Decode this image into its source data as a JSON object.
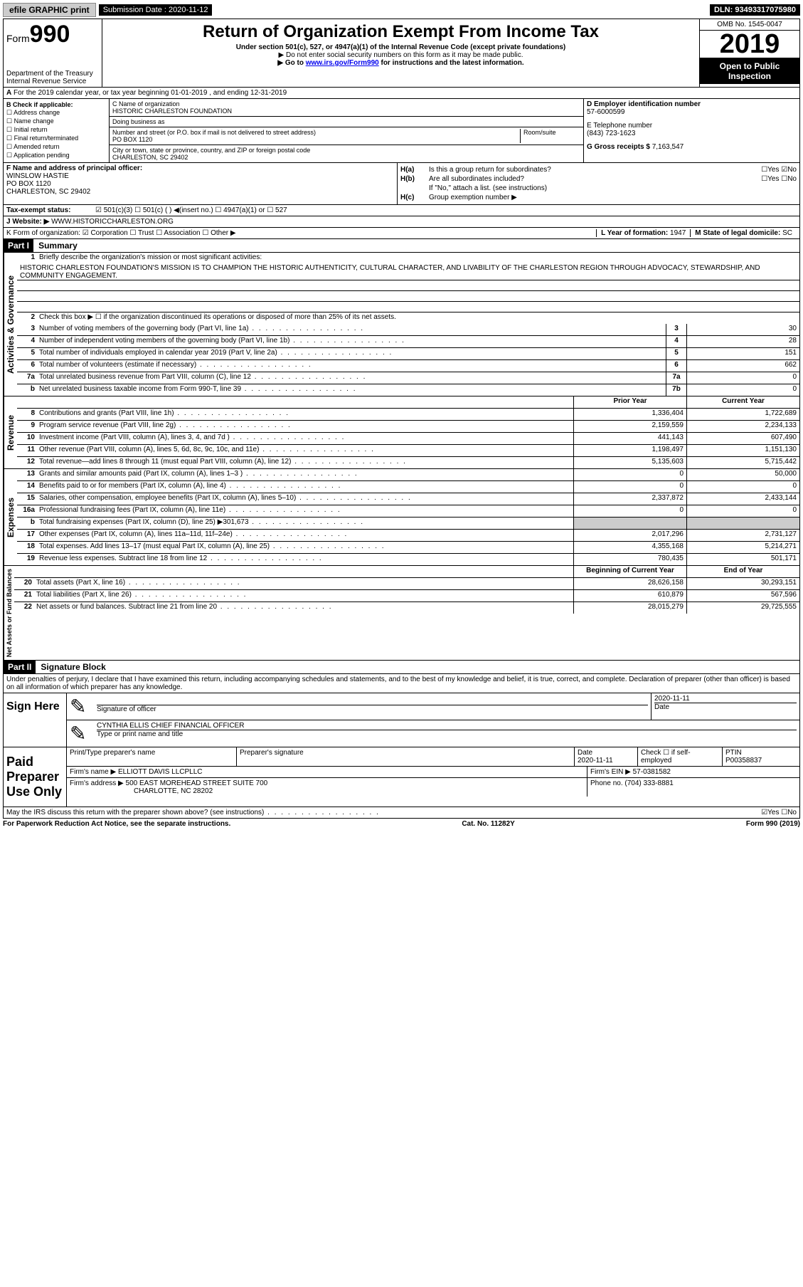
{
  "topbar": {
    "efile": "efile GRAPHIC print",
    "subm_label": "Submission Date : ",
    "subm_date": "2020-11-12",
    "dln": "DLN: 93493317075980"
  },
  "header": {
    "form_word": "Form",
    "form_no": "990",
    "dept": "Department of the Treasury\nInternal Revenue Service",
    "title": "Return of Organization Exempt From Income Tax",
    "sub1": "Under section 501(c), 527, or 4947(a)(1) of the Internal Revenue Code (except private foundations)",
    "sub2": "▶ Do not enter social security numbers on this form as it may be made public.",
    "sub3_pre": "▶ Go to ",
    "sub3_link": "www.irs.gov/Form990",
    "sub3_post": " for instructions and the latest information.",
    "omb": "OMB No. 1545-0047",
    "year": "2019",
    "open": "Open to Public Inspection"
  },
  "lineA": "For the 2019 calendar year, or tax year beginning 01-01-2019    , and ending 12-31-2019",
  "boxB": {
    "label": "B Check if applicable:",
    "opts": [
      "Address change",
      "Name change",
      "Initial return",
      "Final return/terminated",
      "Amended return",
      "Application pending"
    ]
  },
  "boxC": {
    "name_lbl": "C Name of organization",
    "name": "HISTORIC CHARLESTON FOUNDATION",
    "dba_lbl": "Doing business as",
    "dba": "",
    "addr_lbl": "Number and street (or P.O. box if mail is not delivered to street address)",
    "room_lbl": "Room/suite",
    "addr": "PO BOX 1120",
    "city_lbl": "City or town, state or province, country, and ZIP or foreign postal code",
    "city": "CHARLESTON, SC   29402"
  },
  "boxD": {
    "lbl": "D Employer identification number",
    "val": "57-6000599"
  },
  "boxE": {
    "lbl": "E Telephone number",
    "val": "(843) 723-1623"
  },
  "boxG": {
    "lbl": "G Gross receipts $ ",
    "val": "7,163,547"
  },
  "boxF": {
    "lbl": "F Name and address of principal officer:",
    "name": "WINSLOW HASTIE",
    "addr1": "PO BOX 1120",
    "addr2": "CHARLESTON, SC   29402"
  },
  "boxH": {
    "a": "Is this a group return for subordinates?",
    "a_ans": "☐Yes  ☑No",
    "b": "Are all subordinates included?",
    "b_ans": "☐Yes  ☐No",
    "b_note": "If \"No,\" attach a list. (see instructions)",
    "c": "Group exemption number ▶"
  },
  "taxexempt": {
    "lbl": "Tax-exempt status:",
    "opts": "☑ 501(c)(3)    ☐ 501(c) (   ) ◀(insert no.)    ☐ 4947(a)(1) or   ☐ 527"
  },
  "website": {
    "lbl": "J   Website: ▶",
    "val": "WWW.HISTORICCHARLESTON.ORG"
  },
  "boxK": "K Form of organization:  ☑ Corporation  ☐ Trust  ☐ Association  ☐ Other ▶",
  "boxL": {
    "lbl": "L Year of formation: ",
    "val": "1947"
  },
  "boxM": {
    "lbl": "M State of legal domicile: ",
    "val": "SC"
  },
  "part1": {
    "bar": "Part I",
    "title": "Summary",
    "q1": "Briefly describe the organization's mission or most significant activities:",
    "mission": "HISTORIC CHARLESTON FOUNDATION'S MISSION IS TO CHAMPION THE HISTORIC AUTHENTICITY, CULTURAL CHARACTER, AND LIVABILITY OF THE CHARLESTON REGION THROUGH ADVOCACY, STEWARDSHIP, AND COMMUNITY ENGAGEMENT.",
    "q2": "Check this box ▶ ☐  if the organization discontinued its operations or disposed of more than 25% of its net assets.",
    "lines_act": [
      {
        "n": "3",
        "d": "Number of voting members of the governing body (Part VI, line 1a)",
        "box": "3",
        "v": "30"
      },
      {
        "n": "4",
        "d": "Number of independent voting members of the governing body (Part VI, line 1b)",
        "box": "4",
        "v": "28"
      },
      {
        "n": "5",
        "d": "Total number of individuals employed in calendar year 2019 (Part V, line 2a)",
        "box": "5",
        "v": "151"
      },
      {
        "n": "6",
        "d": "Total number of volunteers (estimate if necessary)",
        "box": "6",
        "v": "662"
      },
      {
        "n": "7a",
        "d": "Total unrelated business revenue from Part VIII, column (C), line 12",
        "box": "7a",
        "v": "0"
      },
      {
        "n": "b",
        "d": "Net unrelated business taxable income from Form 990-T, line 39",
        "box": "7b",
        "v": "0"
      }
    ],
    "col_prior": "Prior Year",
    "col_curr": "Current Year",
    "lines_rev": [
      {
        "n": "8",
        "d": "Contributions and grants (Part VIII, line 1h)",
        "p": "1,336,404",
        "c": "1,722,689"
      },
      {
        "n": "9",
        "d": "Program service revenue (Part VIII, line 2g)",
        "p": "2,159,559",
        "c": "2,234,133"
      },
      {
        "n": "10",
        "d": "Investment income (Part VIII, column (A), lines 3, 4, and 7d )",
        "p": "441,143",
        "c": "607,490"
      },
      {
        "n": "11",
        "d": "Other revenue (Part VIII, column (A), lines 5, 6d, 8c, 9c, 10c, and 11e)",
        "p": "1,198,497",
        "c": "1,151,130"
      },
      {
        "n": "12",
        "d": "Total revenue—add lines 8 through 11 (must equal Part VIII, column (A), line 12)",
        "p": "5,135,603",
        "c": "5,715,442"
      }
    ],
    "lines_exp": [
      {
        "n": "13",
        "d": "Grants and similar amounts paid (Part IX, column (A), lines 1–3 )",
        "p": "0",
        "c": "50,000"
      },
      {
        "n": "14",
        "d": "Benefits paid to or for members (Part IX, column (A), line 4)",
        "p": "0",
        "c": "0"
      },
      {
        "n": "15",
        "d": "Salaries, other compensation, employee benefits (Part IX, column (A), lines 5–10)",
        "p": "2,337,872",
        "c": "2,433,144"
      },
      {
        "n": "16a",
        "d": "Professional fundraising fees (Part IX, column (A), line 11e)",
        "p": "0",
        "c": "0"
      },
      {
        "n": "b",
        "d": "Total fundraising expenses (Part IX, column (D), line 25) ▶301,673",
        "p": "",
        "c": "",
        "shade": true
      },
      {
        "n": "17",
        "d": "Other expenses (Part IX, column (A), lines 11a–11d, 11f–24e)",
        "p": "2,017,296",
        "c": "2,731,127"
      },
      {
        "n": "18",
        "d": "Total expenses. Add lines 13–17 (must equal Part IX, column (A), line 25)",
        "p": "4,355,168",
        "c": "5,214,271"
      },
      {
        "n": "19",
        "d": "Revenue less expenses. Subtract line 18 from line 12",
        "p": "780,435",
        "c": "501,171"
      }
    ],
    "col_beg": "Beginning of Current Year",
    "col_end": "End of Year",
    "lines_net": [
      {
        "n": "20",
        "d": "Total assets (Part X, line 16)",
        "p": "28,626,158",
        "c": "30,293,151"
      },
      {
        "n": "21",
        "d": "Total liabilities (Part X, line 26)",
        "p": "610,879",
        "c": "567,596"
      },
      {
        "n": "22",
        "d": "Net assets or fund balances. Subtract line 21 from line 20",
        "p": "28,015,279",
        "c": "29,725,555"
      }
    ],
    "vtab_act": "Activities & Governance",
    "vtab_rev": "Revenue",
    "vtab_exp": "Expenses",
    "vtab_net": "Net Assets or Fund Balances"
  },
  "part2": {
    "bar": "Part II",
    "title": "Signature Block",
    "decl": "Under penalties of perjury, I declare that I have examined this return, including accompanying schedules and statements, and to the best of my knowledge and belief, it is true, correct, and complete. Declaration of preparer (other than officer) is based on all information of which preparer has any knowledge.",
    "sign_here": "Sign Here",
    "sig_officer_lbl": "Signature of officer",
    "sig_date_lbl": "Date",
    "sig_date": "2020-11-11",
    "sig_name": "CYNTHIA ELLIS  CHIEF FINANCIAL OFFICER",
    "sig_name_lbl": "Type or print name and title",
    "paid": "Paid Preparer Use Only",
    "prep_name_lbl": "Print/Type preparer's name",
    "prep_sig_lbl": "Preparer's signature",
    "prep_date_lbl": "Date",
    "prep_date": "2020-11-11",
    "prep_chk": "Check ☐ if self-employed",
    "ptin_lbl": "PTIN",
    "ptin": "P00358837",
    "firm_name_lbl": "Firm's name   ▶",
    "firm_name": "ELLIOTT DAVIS LLCPLLC",
    "firm_ein_lbl": "Firm's EIN ▶",
    "firm_ein": "57-0381582",
    "firm_addr_lbl": "Firm's address ▶",
    "firm_addr": "500 EAST MOREHEAD STREET SUITE 700",
    "firm_city": "CHARLOTTE, NC   28202",
    "firm_phone_lbl": "Phone no. ",
    "firm_phone": "(704) 333-8881",
    "discuss": "May the IRS discuss this return with the preparer shown above? (see instructions)",
    "discuss_ans": "☑Yes  ☐No"
  },
  "footer": {
    "left": "For Paperwork Reduction Act Notice, see the separate instructions.",
    "mid": "Cat. No. 11282Y",
    "right": "Form 990 (2019)"
  }
}
